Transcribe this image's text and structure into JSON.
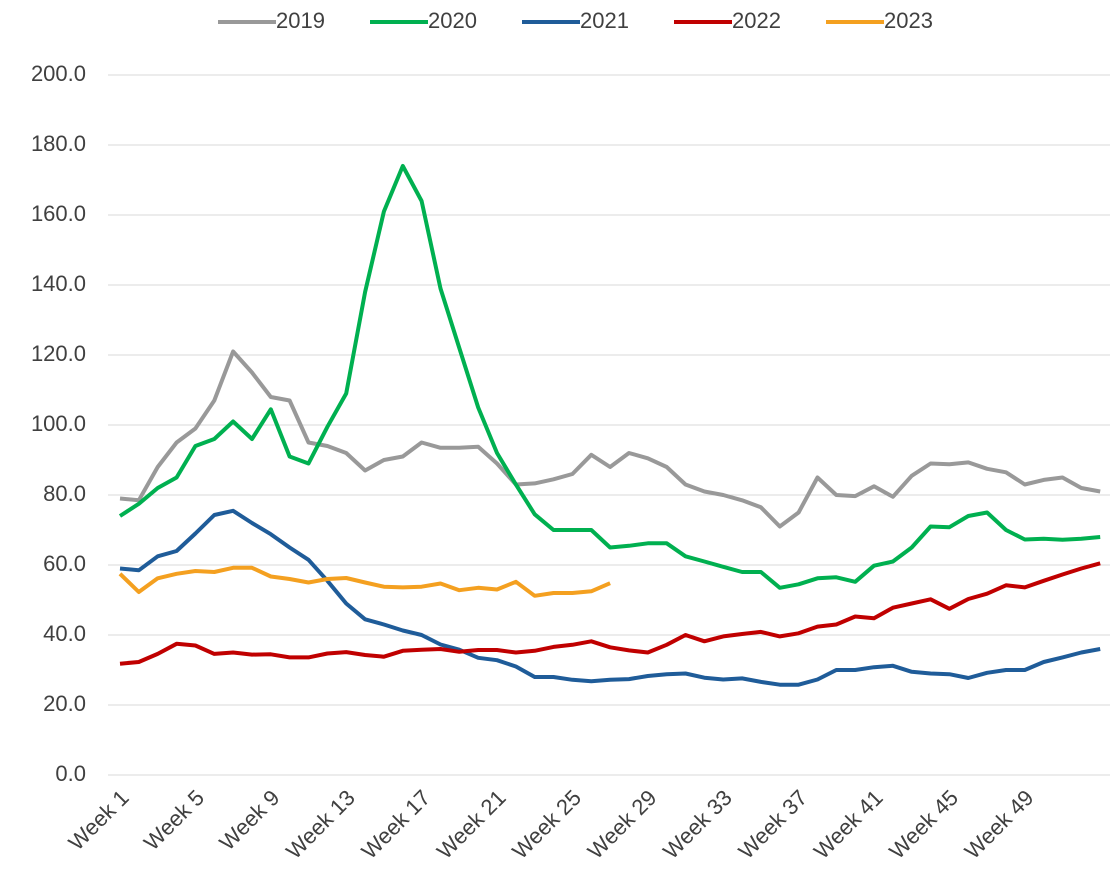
{
  "chart_data": {
    "type": "line",
    "categories": [
      "Week 1",
      null,
      null,
      null,
      "Week 5",
      null,
      null,
      null,
      "Week 9",
      null,
      null,
      null,
      "Week 13",
      null,
      null,
      null,
      "Week 17",
      null,
      null,
      null,
      "Week 21",
      null,
      null,
      null,
      "Week 25",
      null,
      null,
      null,
      "Week 29",
      null,
      null,
      null,
      "Week 33",
      null,
      null,
      null,
      "Week 37",
      null,
      null,
      null,
      "Week 41",
      null,
      null,
      null,
      "Week 45",
      null,
      null,
      null,
      "Week 49",
      null,
      null,
      null,
      null
    ],
    "series": [
      {
        "name": "2019",
        "color": "#999999",
        "values": [
          79,
          78.5,
          88,
          95,
          99,
          107,
          121,
          115,
          108,
          107,
          95,
          94,
          92,
          87,
          90,
          91,
          95,
          93.5,
          93.5,
          93.8,
          89,
          83,
          83.3,
          84.5,
          86,
          91.5,
          88,
          92,
          90.5,
          88,
          83,
          81,
          80,
          78.5,
          76.5,
          71,
          75,
          85,
          80,
          79.7,
          82.5,
          79.5,
          85.5,
          89,
          88.8,
          89.3,
          87.5,
          86.5,
          83,
          84.3,
          85,
          82,
          81
        ]
      },
      {
        "name": "2020",
        "color": "#00b050",
        "values": [
          74,
          77.5,
          82,
          85,
          94,
          96,
          101,
          96,
          104.5,
          91,
          89,
          99.5,
          109,
          138,
          161,
          174,
          164,
          139,
          122,
          105,
          92,
          83,
          74.5,
          70,
          70,
          70,
          65,
          65.5,
          66.2,
          66.2,
          62.5,
          61,
          59.5,
          58,
          58,
          53.5,
          54.5,
          56.2,
          56.5,
          55.2,
          59.8,
          61,
          65,
          71,
          70.8,
          74,
          75,
          70,
          67.3,
          67.5,
          67.2,
          67.5,
          68
        ]
      },
      {
        "name": "2021",
        "color": "#1f5c99",
        "values": [
          59,
          58.5,
          62.5,
          64,
          69,
          74.3,
          75.5,
          72,
          68.8,
          65,
          61.5,
          55.5,
          49,
          44.5,
          43,
          41.3,
          40,
          37.3,
          35.8,
          33.5,
          32.8,
          31,
          28,
          28,
          27.2,
          26.8,
          27.2,
          27.4,
          28.3,
          28.8,
          29,
          27.8,
          27.3,
          27.6,
          26.6,
          25.8,
          25.8,
          27.3,
          30,
          30,
          30.8,
          31.2,
          29.5,
          29,
          28.8,
          27.7,
          29.2,
          30,
          30,
          32.3,
          33.6,
          35,
          36
        ]
      },
      {
        "name": "2022",
        "color": "#c00000",
        "values": [
          31.8,
          32.3,
          34.6,
          37.5,
          37,
          34.6,
          35,
          34.4,
          34.5,
          33.6,
          33.6,
          34.7,
          35.1,
          34.3,
          33.8,
          35.5,
          35.8,
          36,
          35.2,
          35.7,
          35.7,
          35,
          35.5,
          36.6,
          37.2,
          38.2,
          36.5,
          35.6,
          35,
          37.2,
          40,
          38.2,
          39.6,
          40.3,
          40.9,
          39.6,
          40.5,
          42.4,
          43,
          45.3,
          44.8,
          47.8,
          49,
          50.2,
          47.5,
          50.3,
          51.8,
          54.2,
          53.6,
          55.5,
          57.3,
          59,
          60.5
        ]
      },
      {
        "name": "2023",
        "color": "#f4a020",
        "values": [
          57.5,
          52.3,
          56.2,
          57.5,
          58.3,
          58,
          59.2,
          59.2,
          56.7,
          56,
          55,
          56,
          56.3,
          55,
          53.8,
          53.6,
          53.8,
          54.7,
          52.8,
          53.5,
          53,
          55.2,
          51.2,
          52,
          52,
          52.5,
          54.8,
          null,
          null,
          null,
          null,
          null,
          null,
          null,
          null,
          null,
          null,
          null,
          null,
          null,
          null,
          null,
          null,
          null,
          null,
          null,
          null,
          null,
          null,
          null,
          null,
          null,
          null
        ]
      }
    ],
    "ylim": [
      0,
      200
    ],
    "yticks": [
      {
        "value": 0,
        "label": "0.0"
      },
      {
        "value": 20,
        "label": "20.0"
      },
      {
        "value": 40,
        "label": "40.0"
      },
      {
        "value": 60,
        "label": "60.0"
      },
      {
        "value": 80,
        "label": "80.0"
      },
      {
        "value": 100,
        "label": "100.0"
      },
      {
        "value": 120,
        "label": "120.0"
      },
      {
        "value": 140,
        "label": "140.0"
      },
      {
        "value": 160,
        "label": "160.0"
      },
      {
        "value": 180,
        "label": "180.0"
      },
      {
        "value": 200,
        "label": "200.0"
      }
    ],
    "grid": true,
    "legend": "top"
  }
}
